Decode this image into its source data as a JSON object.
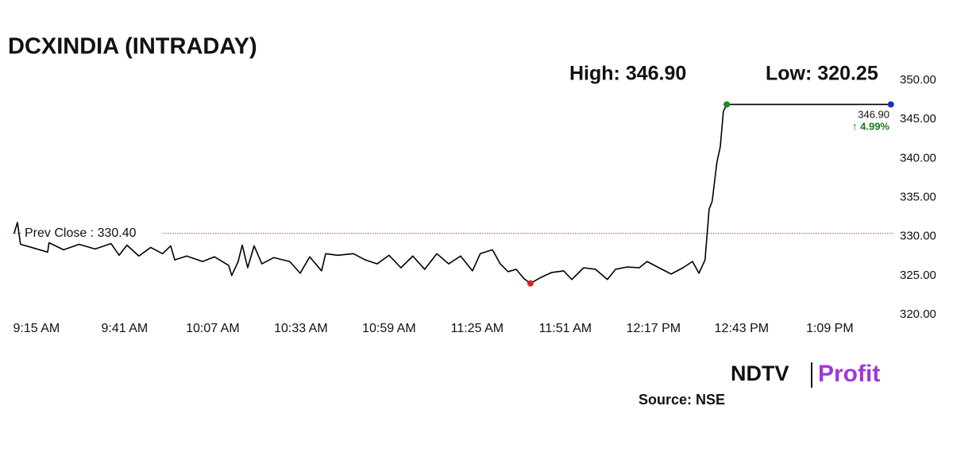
{
  "chart_data": {
    "type": "line",
    "title": "DCXINDIA (INTRADAY)",
    "high_label": "High: 346.90",
    "low_label": "Low: 320.25",
    "prev_close": {
      "value": 330.4,
      "label": "Prev Close : 330.40"
    },
    "last_price_label": "346.90",
    "change_label": "↑ 4.99%",
    "source": "Source: NSE",
    "logo": {
      "left": "NDTV",
      "right": "Profit"
    },
    "x": [
      548.4,
      549.4,
      550.3,
      553.6,
      558.3,
      558.7,
      563.0,
      567.6,
      572.3,
      577.0,
      579.4,
      581.7,
      585.2,
      588.7,
      592.2,
      594.6,
      595.8,
      599.3,
      604.0,
      607.5,
      611.7,
      612.6,
      614.5,
      615.7,
      617.3,
      619.2,
      621.5,
      625.0,
      629.7,
      632.8,
      635.6,
      639.1,
      640.3,
      643.8,
      648.5,
      652.0,
      655.5,
      659.0,
      662.5,
      666.0,
      669.5,
      673.1,
      676.6,
      680.1,
      683.6,
      685.9,
      689.5,
      691.8,
      694.1,
      696.5,
      698.8,
      700.7,
      703.5,
      707.0,
      710.5,
      712.9,
      716.4,
      719.9,
      723.4,
      725.8,
      729.3,
      732.8,
      735.1,
      738.6,
      742.2,
      745.7,
      748.5,
      750.4,
      752.2,
      753.4,
      754.3,
      755.7,
      756.7,
      757.6,
      758.6,
      807.0
    ],
    "series": [
      {
        "color": "#000000",
        "values": [
          330.4,
          331.8,
          329.0,
          328.6,
          328.0,
          329.2,
          328.3,
          329.0,
          328.4,
          329.1,
          327.6,
          328.9,
          327.5,
          328.6,
          327.8,
          328.8,
          327.0,
          327.5,
          326.8,
          327.4,
          326.3,
          325.0,
          326.8,
          328.9,
          326.0,
          328.8,
          326.5,
          327.3,
          326.8,
          325.3,
          327.4,
          325.6,
          327.8,
          327.6,
          327.8,
          327.0,
          326.5,
          327.6,
          326.0,
          327.5,
          325.8,
          327.8,
          326.5,
          327.5,
          325.6,
          327.8,
          328.3,
          326.5,
          325.5,
          325.8,
          324.6,
          324.0,
          324.7,
          325.4,
          325.6,
          324.5,
          326.0,
          325.8,
          324.5,
          325.8,
          326.1,
          326.0,
          326.8,
          326.0,
          325.2,
          326.0,
          326.8,
          325.3,
          327.0,
          333.5,
          334.5,
          339.5,
          341.5,
          346.0,
          346.9,
          346.9
        ]
      }
    ],
    "high_color": "#1a8a1a",
    "low_color": "#e02020",
    "last_color": "#1f2fbf",
    "prev_close_color": "#c0392b",
    "change_color": "#1a7a1a",
    "xlim": [
      548,
      808
    ],
    "xticks": [
      {
        "value": 555,
        "label": "9:15 AM"
      },
      {
        "value": 581,
        "label": "9:41 AM"
      },
      {
        "value": 607,
        "label": "10:07 AM"
      },
      {
        "value": 633,
        "label": "10:33 AM"
      },
      {
        "value": 659,
        "label": "10:59 AM"
      },
      {
        "value": 685,
        "label": "11:25 AM"
      },
      {
        "value": 711,
        "label": "11:51 AM"
      },
      {
        "value": 737,
        "label": "12:17 PM"
      },
      {
        "value": 763,
        "label": "12:43 PM"
      },
      {
        "value": 789,
        "label": "1:09 PM"
      }
    ],
    "ylim": [
      320,
      350
    ],
    "yticks": [
      {
        "value": 320,
        "label": "320.00"
      },
      {
        "value": 325,
        "label": "325.00"
      },
      {
        "value": 330,
        "label": "330.00"
      },
      {
        "value": 335,
        "label": "335.00"
      },
      {
        "value": 340,
        "label": "340.00"
      },
      {
        "value": 345,
        "label": "345.00"
      },
      {
        "value": 350,
        "label": "350.00"
      }
    ],
    "grid": false
  }
}
